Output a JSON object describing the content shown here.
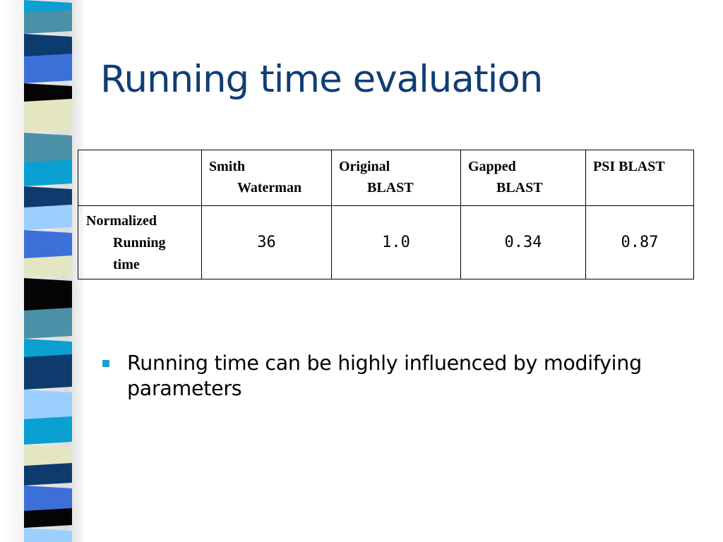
{
  "slide": {
    "title": "Running time evaluation",
    "table": {
      "columns": [
        {
          "line1": "Smith",
          "line2": "Waterman"
        },
        {
          "line1": "Original",
          "line2": "BLAST"
        },
        {
          "line1": "Gapped",
          "line2": "BLAST"
        },
        {
          "line1": "PSI BLAST"
        }
      ],
      "row": {
        "label_lines": [
          "Normalized",
          "Running",
          "time"
        ],
        "values": [
          "36",
          "1.0",
          "0.34",
          "0.87"
        ]
      }
    },
    "bullets": [
      "Running time can be highly influenced by modifying parameters"
    ]
  },
  "colors": {
    "title": "#0f3e74",
    "bullet": "#1aa0d0",
    "stripe_navy": "#0d3b6e",
    "stripe_blue": "#3d6fd8",
    "stripe_teal": "#4c90a8",
    "stripe_cyan": "#0aa0d2",
    "stripe_sky": "#9ccfff",
    "stripe_cream": "#e4e6c2",
    "stripe_black": "#050505"
  }
}
